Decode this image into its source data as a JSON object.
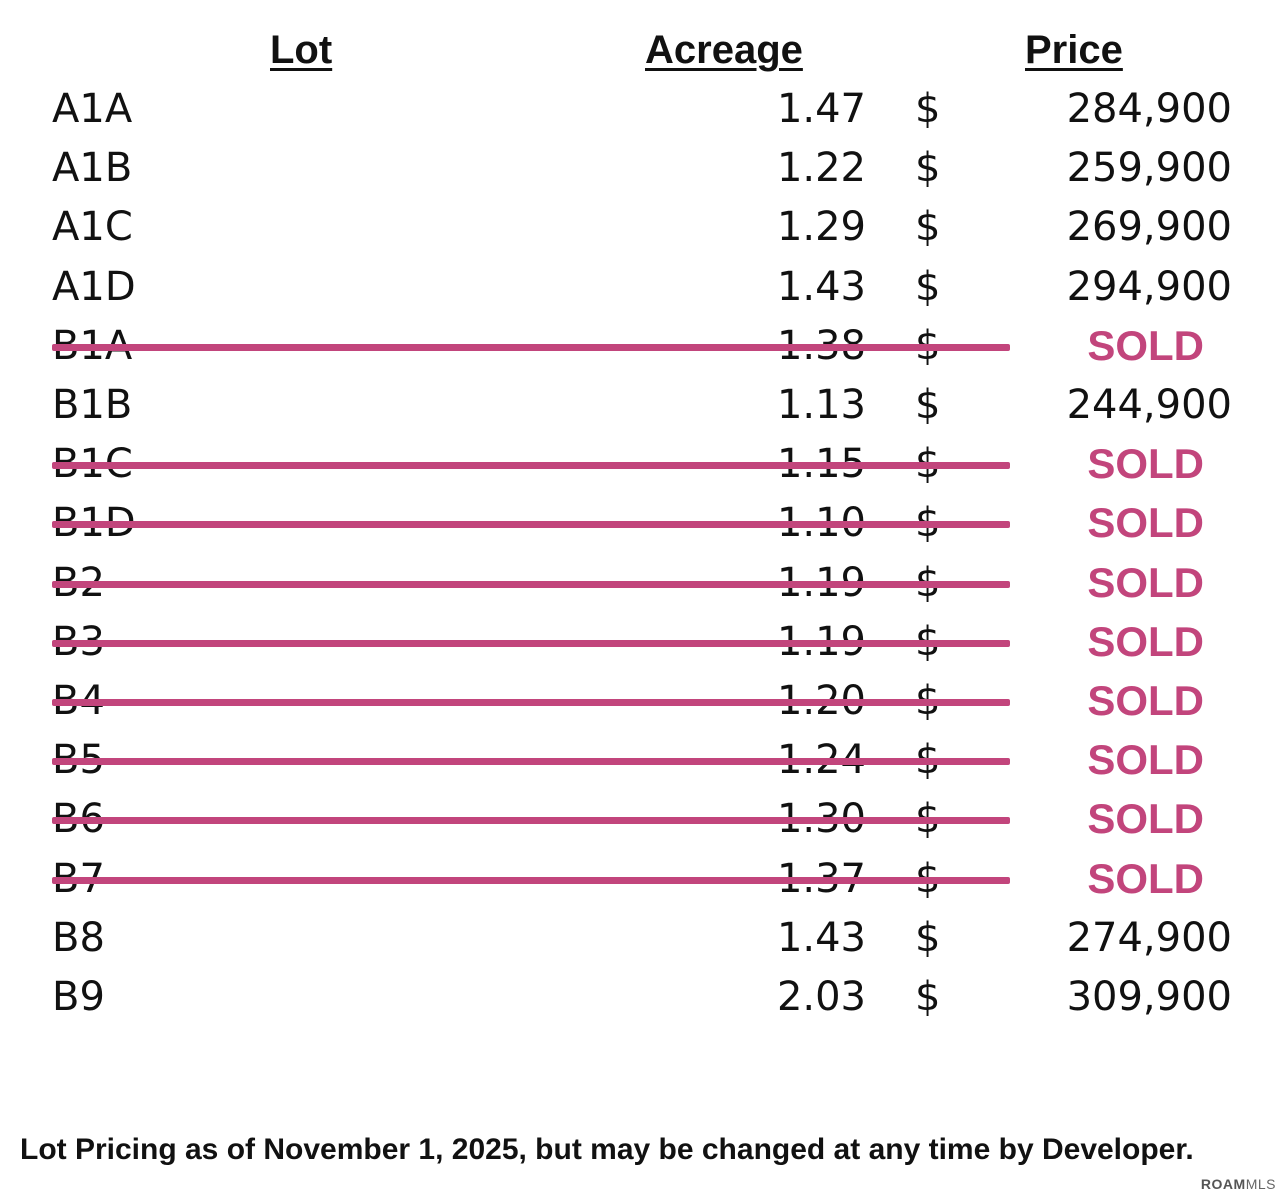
{
  "headers": {
    "lot": "Lot",
    "acreage": "Acreage",
    "price": "Price"
  },
  "currency_symbol": "$",
  "sold_color": "#c2457c",
  "rows": [
    {
      "lot": "A1A",
      "acreage": "1.47",
      "price": "284,900",
      "sold": false
    },
    {
      "lot": "A1B",
      "acreage": "1.22",
      "price": "259,900",
      "sold": false
    },
    {
      "lot": "A1C",
      "acreage": "1.29",
      "price": "269,900",
      "sold": false
    },
    {
      "lot": "A1D",
      "acreage": "1.43",
      "price": "294,900",
      "sold": false
    },
    {
      "lot": "B1A",
      "acreage": "1.38",
      "price": "SOLD",
      "sold": true
    },
    {
      "lot": "B1B",
      "acreage": "1.13",
      "price": "244,900",
      "sold": false
    },
    {
      "lot": "B1C",
      "acreage": "1.15",
      "price": "SOLD",
      "sold": true
    },
    {
      "lot": "B1D",
      "acreage": "1.10",
      "price": "SOLD",
      "sold": true
    },
    {
      "lot": "B2",
      "acreage": "1.19",
      "price": "SOLD",
      "sold": true
    },
    {
      "lot": "B3",
      "acreage": "1.19",
      "price": "SOLD",
      "sold": true
    },
    {
      "lot": "B4",
      "acreage": "1.20",
      "price": "SOLD",
      "sold": true
    },
    {
      "lot": "B5",
      "acreage": "1.24",
      "price": "SOLD",
      "sold": true
    },
    {
      "lot": "B6",
      "acreage": "1.30",
      "price": "SOLD",
      "sold": true
    },
    {
      "lot": "B7",
      "acreage": "1.37",
      "price": "SOLD",
      "sold": true
    },
    {
      "lot": "B8",
      "acreage": "1.43",
      "price": "274,900",
      "sold": false
    },
    {
      "lot": "B9",
      "acreage": "2.03",
      "price": "309,900",
      "sold": false
    }
  ],
  "footer": "Lot Pricing as of November 1, 2025, but may be changed at any time by Developer.",
  "watermark": {
    "brand": "ROAM",
    "suffix": "MLS"
  }
}
